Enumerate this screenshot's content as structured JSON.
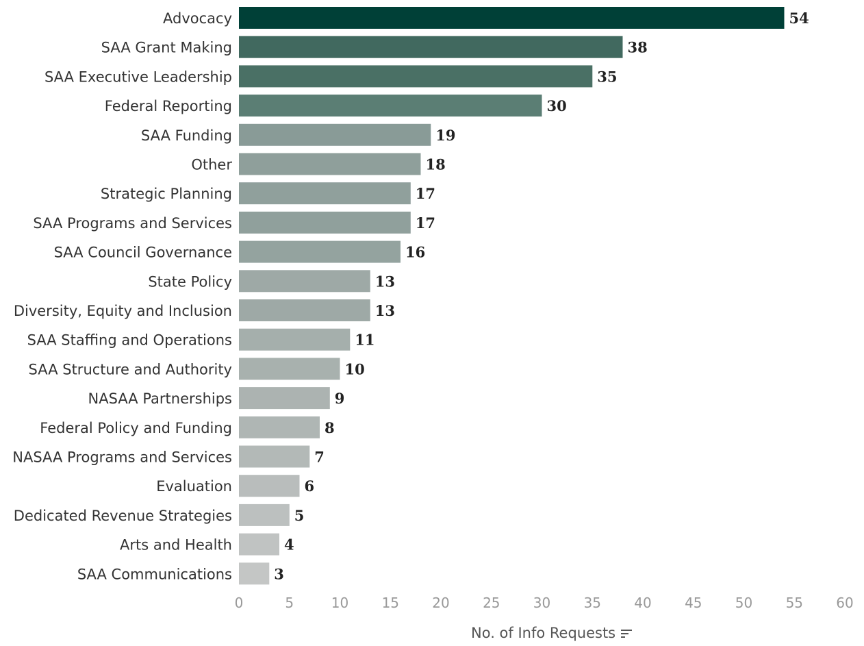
{
  "chart_data": {
    "type": "bar",
    "orientation": "horizontal",
    "categories": [
      "Advocacy",
      "SAA Grant Making",
      "SAA Executive Leadership",
      "Federal Reporting",
      "SAA Funding",
      "Other",
      "Strategic Planning",
      "SAA Programs and Services",
      "SAA Council Governance",
      "State Policy",
      "Diversity, Equity and Inclusion",
      "SAA Staffing and Operations",
      "SAA Structure and Authority",
      "NASAA Partnerships",
      "Federal Policy and Funding",
      "NASAA Programs and Services",
      "Evaluation",
      "Dedicated Revenue Strategies",
      "Arts and Health",
      "SAA Communications"
    ],
    "values": [
      54,
      38,
      35,
      30,
      19,
      18,
      17,
      17,
      16,
      13,
      13,
      11,
      10,
      9,
      8,
      7,
      6,
      5,
      4,
      3
    ],
    "colors": [
      "#004037",
      "#41695f",
      "#4a7065",
      "#5b7e74",
      "#899b97",
      "#8f9f9b",
      "#90a09c",
      "#90a09c",
      "#94a39f",
      "#9ea9a6",
      "#9ea9a6",
      "#a5afac",
      "#a8b1ae",
      "#acb3b1",
      "#afb6b4",
      "#b3b9b7",
      "#b9bdbc",
      "#bcc0bf",
      "#c0c3c2",
      "#c4c6c5"
    ],
    "title": "",
    "xlabel": "No. of Info Requests",
    "ylabel": "",
    "xlim": [
      0,
      60
    ],
    "xticks": [
      0,
      5,
      10,
      15,
      20,
      25,
      30,
      35,
      40,
      45,
      50,
      55,
      60
    ],
    "grid": false,
    "legend": "none",
    "sort_icon": "sort-descending-icon"
  }
}
